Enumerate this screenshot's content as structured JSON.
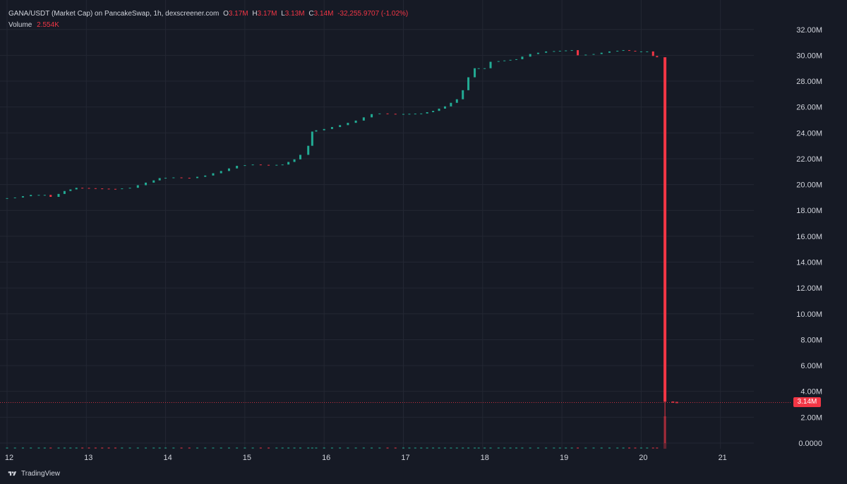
{
  "legend": {
    "symbol": "GANA/USDT (Market Cap) on PancakeSwap, 1h, dexscreener.com",
    "open_label": "O",
    "open_value": "3.17M",
    "high_label": "H",
    "high_value": "3.17M",
    "low_label": "L",
    "low_value": "3.13M",
    "close_label": "C",
    "close_value": "3.14M",
    "change": "-32,255.9707 (-1.02%)",
    "volume_label": "Volume",
    "volume_value": "2.554K"
  },
  "branding": {
    "text": "TradingView",
    "icon": "tradingview-logo-icon"
  },
  "current_price_label": "3.14M",
  "colors": {
    "background": "#161a25",
    "grid": "#232733",
    "up": "#22ab94",
    "down": "#f23645",
    "text": "#d1d4dc"
  },
  "chart_data": {
    "type": "candlestick",
    "x_ticks": [
      "12",
      "13",
      "14",
      "15",
      "16",
      "17",
      "18",
      "19",
      "20",
      "21"
    ],
    "y_ticks": [
      "0.0000",
      "2.00M",
      "4.00M",
      "6.00M",
      "8.00M",
      "10.00M",
      "12.00M",
      "14.00M",
      "16.00M",
      "18.00M",
      "20.00M",
      "22.00M",
      "24.00M",
      "26.00M",
      "28.00M",
      "30.00M",
      "32.00M"
    ],
    "x_range_days": [
      12,
      22
    ],
    "ylim_millions": [
      0,
      32
    ],
    "current_close": 3.14,
    "series_close_millions": [
      [
        12.0,
        18.9
      ],
      [
        12.2,
        19.0
      ],
      [
        12.4,
        19.2
      ],
      [
        12.55,
        19.2
      ],
      [
        12.65,
        19.05
      ],
      [
        12.8,
        19.5
      ],
      [
        12.95,
        19.75
      ],
      [
        13.2,
        19.7
      ],
      [
        13.45,
        19.65
      ],
      [
        13.65,
        19.75
      ],
      [
        13.85,
        20.15
      ],
      [
        14.0,
        20.5
      ],
      [
        14.2,
        20.55
      ],
      [
        14.4,
        20.5
      ],
      [
        14.6,
        20.7
      ],
      [
        14.8,
        21.05
      ],
      [
        15.0,
        21.45
      ],
      [
        15.2,
        21.55
      ],
      [
        15.4,
        21.5
      ],
      [
        15.55,
        21.55
      ],
      [
        15.7,
        21.95
      ],
      [
        15.8,
        22.3
      ],
      [
        15.85,
        23.0
      ],
      [
        15.9,
        24.1
      ],
      [
        16.1,
        24.3
      ],
      [
        16.3,
        24.6
      ],
      [
        16.5,
        24.95
      ],
      [
        16.7,
        25.45
      ],
      [
        16.8,
        25.5
      ],
      [
        17.0,
        25.45
      ],
      [
        17.3,
        25.5
      ],
      [
        17.45,
        25.7
      ],
      [
        17.6,
        26.05
      ],
      [
        17.75,
        26.6
      ],
      [
        17.82,
        27.3
      ],
      [
        17.9,
        28.3
      ],
      [
        17.95,
        29.0
      ],
      [
        18.1,
        29.0
      ],
      [
        18.2,
        29.5
      ],
      [
        18.5,
        29.7
      ],
      [
        18.7,
        30.1
      ],
      [
        18.9,
        30.3
      ],
      [
        19.2,
        30.4
      ],
      [
        19.3,
        30.0
      ],
      [
        19.5,
        30.1
      ],
      [
        19.7,
        30.3
      ],
      [
        19.85,
        30.4
      ],
      [
        20.0,
        30.3
      ],
      [
        20.15,
        30.3
      ],
      [
        20.2,
        29.95
      ],
      [
        20.28,
        29.85
      ],
      [
        20.3,
        3.2
      ],
      [
        20.4,
        3.17
      ],
      [
        20.45,
        3.14
      ]
    ],
    "crash_candle": {
      "day": 20.3,
      "open": 29.85,
      "high": 29.85,
      "low": 0.0,
      "close": 3.2
    },
    "volume_spike_day": 20.3
  }
}
